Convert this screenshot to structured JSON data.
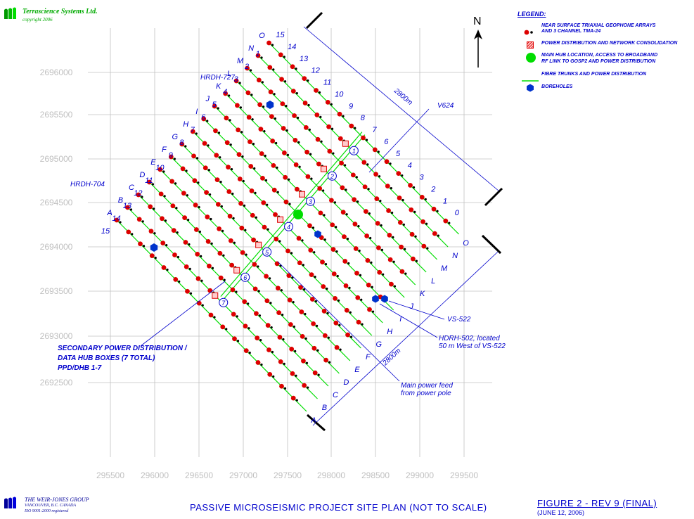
{
  "company_header": {
    "name": "Terrascience Systems Ltd.",
    "copyright": "copyright 2006"
  },
  "legend": {
    "title": "LEGEND:",
    "items": [
      {
        "icon": "geophone-array-icon",
        "line1": "NEAR SURFACE TRIAXIAL GEOPHONE ARRAYS",
        "line2": "AND 3 CHANNEL TMA-24"
      },
      {
        "icon": "power-distribution-icon",
        "line1": "POWER DISTRIBUTION AND NETWORK CONSOLIDATION",
        "line2": ""
      },
      {
        "icon": "main-hub-icon",
        "line1": "MAIN HUB LOCATION, ACCESS TO BROADBAND",
        "line2": "RF LINK TO GOSP2 AND POWER DISTRIBUTION"
      },
      {
        "icon": "fibre-trunk-icon",
        "line1": "FIBRE TRUNKS AND POWER DISTRIBUTION",
        "line2": ""
      },
      {
        "icon": "borehole-icon",
        "line1": "BOREHOLES",
        "line2": ""
      }
    ]
  },
  "north_label": "N",
  "axes": {
    "y_ticks": [
      "2696000",
      "2695500",
      "2695000",
      "2694500",
      "2694000",
      "2693500",
      "2693000",
      "2692500"
    ],
    "x_ticks": [
      "295500",
      "296000",
      "296500",
      "297000",
      "297500",
      "298000",
      "298500",
      "299000",
      "299500"
    ]
  },
  "grid_labels": {
    "upper_left_letters": [
      "A",
      "B",
      "C",
      "D",
      "E",
      "F",
      "G",
      "H",
      "I",
      "J",
      "K",
      "L",
      "M",
      "N",
      "O"
    ],
    "upper_right_numbers": [
      "15",
      "14",
      "13",
      "12",
      "11",
      "10",
      "9",
      "8",
      "7",
      "6",
      "5",
      "4",
      "3",
      "2",
      "1",
      "0"
    ],
    "lower_left_numbers": [
      "15",
      "14",
      "13",
      "12",
      "11",
      "10",
      "9",
      "8",
      "7",
      "6",
      "5",
      "4",
      "3",
      "2",
      "1"
    ],
    "lower_right_letters": [
      "A",
      "B",
      "C",
      "D",
      "E",
      "F",
      "G",
      "H",
      "I",
      "J",
      "K",
      "L",
      "M",
      "N",
      "O"
    ]
  },
  "hubs": [
    "1",
    "2",
    "3",
    "4",
    "5",
    "6",
    "7"
  ],
  "dimensions": {
    "upper_right": "2800m",
    "lower_right": "2800m"
  },
  "annotations": {
    "hrdh727": "HRDH-727",
    "hrdh704": "HRDH-704",
    "v624": "V624",
    "vs522": "VS-522",
    "hdrh502_l1": "HDRH-502, located",
    "hdrh502_l2": "50 m West of VS-522",
    "main_power_l1": "Main power feed",
    "main_power_l2": "from power pole",
    "secondary_l1": "SECONDARY POWER DISTRIBUTION /",
    "secondary_l2": "DATA HUB BOXES (7 TOTAL)",
    "secondary_l3": "PPD/DHB 1-7"
  },
  "footer": {
    "company_l1": "THE WEIR-JONES GROUP",
    "company_l2": "VANCOUVER, B.C.   CANADA",
    "company_l3": "ISO 9001:2000 registered",
    "caption": "PASSIVE MICROSEISMIC PROJECT SITE PLAN  (NOT TO SCALE)",
    "figure": "FIGURE 2 - REV 9 (FINAL)",
    "date": "(JUNE 12, 2006)"
  },
  "colors": {
    "grid": "#c0c0c0",
    "axis_text": "#c0c0c0",
    "fibre": "#00dd00",
    "sensor": "#dd0000",
    "borehole": "#0033cc",
    "hub": "#00dd00",
    "annotation": "#0000cc"
  }
}
